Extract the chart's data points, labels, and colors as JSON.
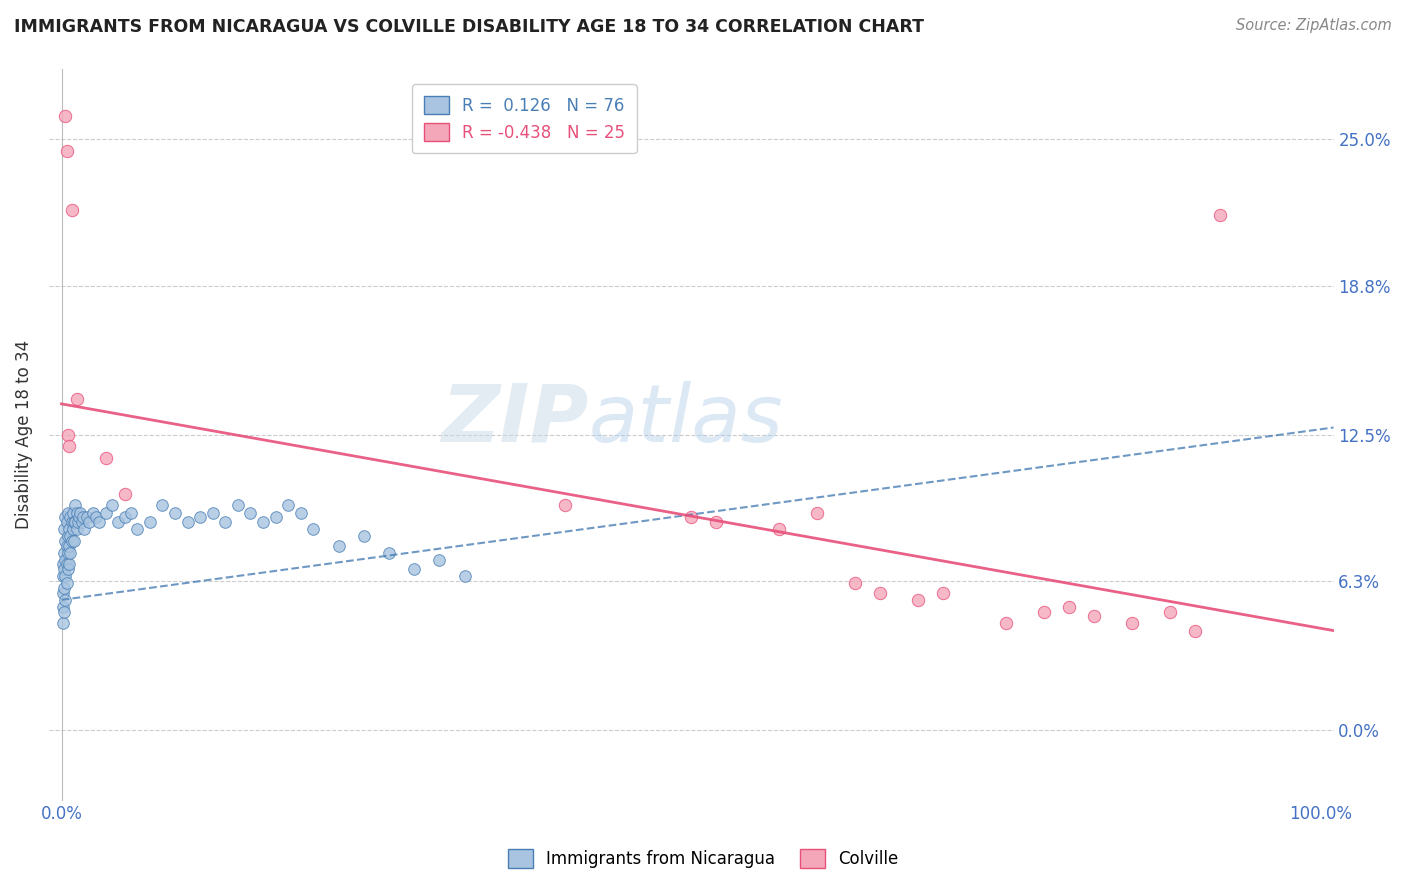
{
  "title": "IMMIGRANTS FROM NICARAGUA VS COLVILLE DISABILITY AGE 18 TO 34 CORRELATION CHART",
  "source": "Source: ZipAtlas.com",
  "ylabel": "Disability Age 18 to 34",
  "ytick_vals": [
    0.0,
    6.3,
    12.5,
    18.8,
    25.0
  ],
  "xtick_vals": [
    0.0,
    100.0
  ],
  "xlim": [
    -1.0,
    101.0
  ],
  "ylim": [
    -3.0,
    28.0
  ],
  "blue_R": 0.126,
  "blue_N": 76,
  "pink_R": -0.438,
  "pink_N": 25,
  "blue_color": "#a8c4e0",
  "pink_color": "#f4a7b9",
  "blue_line_color": "#4a7fb5",
  "pink_line_color": "#e8507a",
  "legend_blue_label": "Immigrants from Nicaragua",
  "legend_pink_label": "Colville",
  "blue_scatter_x": [
    0.1,
    0.1,
    0.1,
    0.1,
    0.1,
    0.2,
    0.2,
    0.2,
    0.2,
    0.2,
    0.3,
    0.3,
    0.3,
    0.3,
    0.3,
    0.4,
    0.4,
    0.4,
    0.4,
    0.5,
    0.5,
    0.5,
    0.5,
    0.6,
    0.6,
    0.6,
    0.7,
    0.7,
    0.7,
    0.8,
    0.8,
    0.9,
    0.9,
    1.0,
    1.0,
    1.1,
    1.1,
    1.2,
    1.2,
    1.3,
    1.4,
    1.5,
    1.6,
    1.7,
    1.8,
    2.0,
    2.2,
    2.5,
    2.7,
    3.0,
    3.5,
    4.0,
    4.5,
    5.0,
    5.5,
    6.0,
    7.0,
    8.0,
    9.0,
    10.0,
    11.0,
    12.0,
    13.0,
    14.0,
    15.0,
    16.0,
    17.0,
    18.0,
    19.0,
    20.0,
    22.0,
    24.0,
    26.0,
    28.0,
    30.0,
    32.0
  ],
  "blue_scatter_y": [
    7.0,
    6.5,
    5.8,
    5.2,
    4.5,
    8.5,
    7.5,
    6.8,
    6.0,
    5.0,
    9.0,
    8.0,
    7.2,
    6.5,
    5.5,
    8.8,
    7.8,
    7.0,
    6.2,
    9.2,
    8.2,
    7.5,
    6.8,
    8.5,
    7.8,
    7.0,
    9.0,
    8.2,
    7.5,
    8.8,
    8.0,
    9.2,
    8.5,
    8.8,
    8.0,
    9.5,
    8.8,
    9.2,
    8.5,
    8.8,
    9.0,
    9.2,
    8.8,
    9.0,
    8.5,
    9.0,
    8.8,
    9.2,
    9.0,
    8.8,
    9.2,
    9.5,
    8.8,
    9.0,
    9.2,
    8.5,
    8.8,
    9.5,
    9.2,
    8.8,
    9.0,
    9.2,
    8.8,
    9.5,
    9.2,
    8.8,
    9.0,
    9.5,
    9.2,
    8.5,
    7.8,
    8.2,
    7.5,
    6.8,
    7.2,
    6.5
  ],
  "pink_scatter_x": [
    0.3,
    0.4,
    0.5,
    0.6,
    0.8,
    1.2,
    3.5,
    5.0,
    40.0,
    50.0,
    52.0,
    57.0,
    60.0,
    63.0,
    65.0,
    68.0,
    70.0,
    75.0,
    78.0,
    80.0,
    82.0,
    85.0,
    88.0,
    90.0,
    92.0
  ],
  "pink_scatter_y": [
    26.0,
    24.5,
    12.5,
    12.0,
    22.0,
    14.0,
    11.5,
    10.0,
    9.5,
    9.0,
    8.8,
    8.5,
    9.2,
    6.2,
    5.8,
    5.5,
    5.8,
    4.5,
    5.0,
    5.2,
    4.8,
    4.5,
    5.0,
    4.2,
    21.8
  ],
  "grid_color": "#cccccc",
  "bg_color": "#ffffff",
  "blue_line_x0": 0.0,
  "blue_line_x1": 101.0,
  "blue_line_y0": 5.5,
  "blue_line_y1": 12.8,
  "pink_line_x0": 0.0,
  "pink_line_x1": 101.0,
  "pink_line_y0": 13.8,
  "pink_line_y1": 4.2
}
